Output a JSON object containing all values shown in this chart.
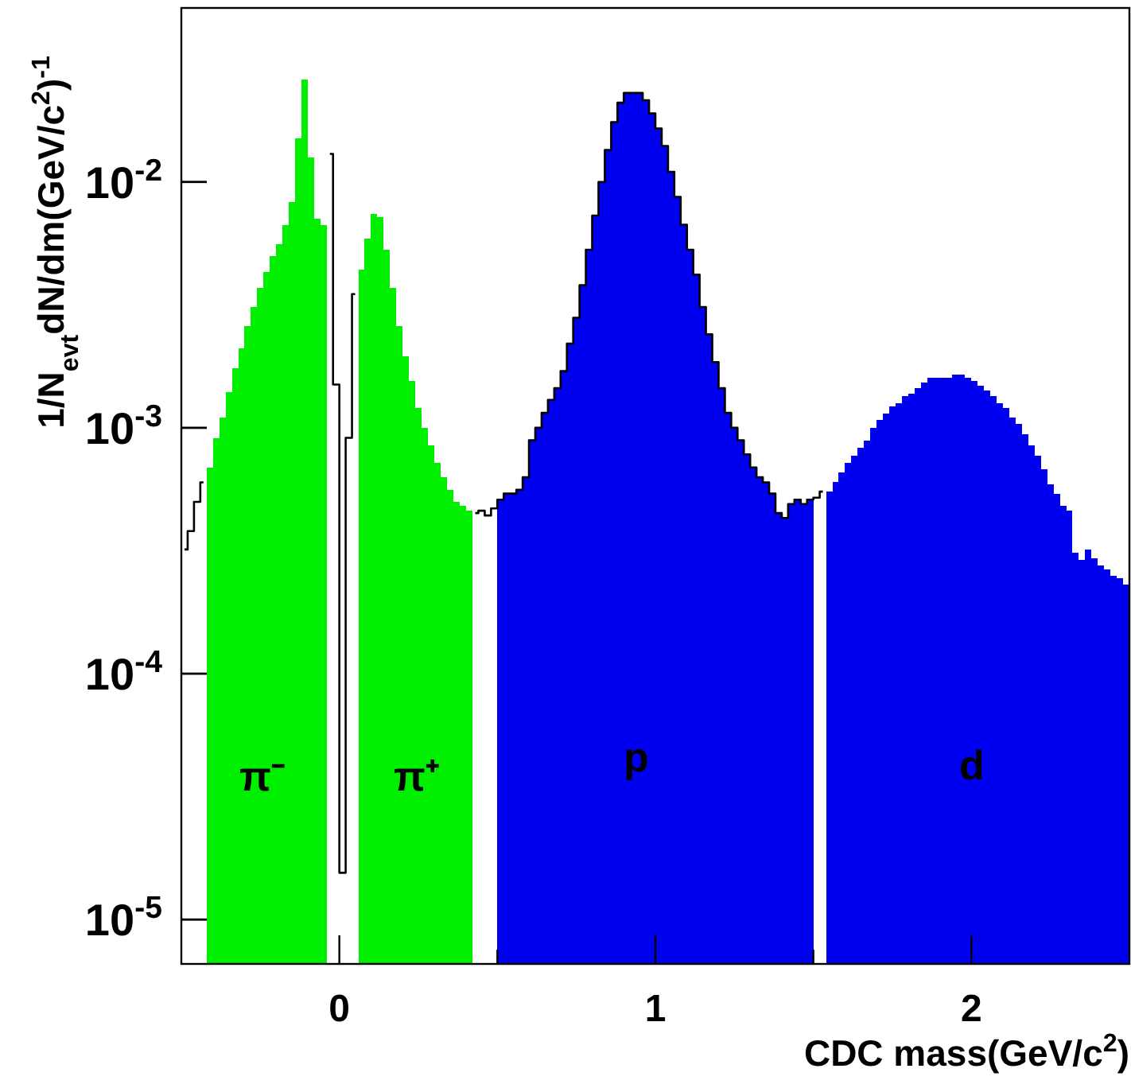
{
  "chart_data": {
    "type": "histogram",
    "xlabel": "CDC mass(GeV/c$^{2}$)",
    "ylabel": "1/N$_{evt}$dN/dm(GeV/c$^{2}$)$^{-1}$",
    "log": "y",
    "xlim": [
      -0.5,
      2.5
    ],
    "xticks": [
      0,
      {
        "value": 0.5,
        "label": null
      },
      1,
      {
        "value": 1.5,
        "label": null
      },
      2
    ],
    "ylim": [
      6.6e-06,
      0.051
    ],
    "yticks": [
      {
        "value": 1e-05,
        "label": "10$^{-5}$"
      },
      {
        "value": 0.0001,
        "label": "10$^{-4}$"
      },
      {
        "value": 0.001,
        "label": "10$^{-3}$"
      },
      {
        "value": 0.01,
        "label": "10$^{-2}$"
      }
    ],
    "bins": [
      -0.5,
      -0.48,
      -0.46,
      -0.44,
      -0.42,
      -0.4,
      -0.38,
      -0.36,
      -0.34,
      -0.32,
      -0.3,
      -0.28,
      -0.26,
      -0.24,
      -0.22,
      -0.2,
      -0.18,
      -0.16,
      -0.14,
      -0.12,
      -0.1,
      -0.08,
      -0.06,
      -0.04,
      -0.02,
      0,
      0.02,
      0.04,
      0.06,
      0.08,
      0.1,
      0.12,
      0.14,
      0.16,
      0.18,
      0.2,
      0.22,
      0.24,
      0.26,
      0.28,
      0.3,
      0.32,
      0.34,
      0.36,
      0.38,
      0.4,
      0.42,
      0.44,
      0.46,
      0.48,
      0.5,
      0.52,
      0.54,
      0.56,
      0.58,
      0.6,
      0.62,
      0.64,
      0.66,
      0.68,
      0.7,
      0.72,
      0.74,
      0.76,
      0.78,
      0.8,
      0.82,
      0.84,
      0.86,
      0.88,
      0.9,
      0.92,
      0.94,
      0.96,
      0.98,
      1,
      1.02,
      1.04,
      1.06,
      1.08,
      1.1,
      1.12,
      1.14,
      1.16,
      1.18,
      1.2,
      1.22,
      1.24,
      1.26,
      1.28,
      1.3,
      1.32,
      1.34,
      1.36,
      1.38,
      1.4,
      1.42,
      1.44,
      1.46,
      1.48,
      1.5,
      1.52,
      1.54,
      1.56,
      1.58,
      1.6,
      1.62,
      1.64,
      1.66,
      1.68,
      1.7,
      1.72,
      1.74,
      1.76,
      1.78,
      1.8,
      1.82,
      1.84,
      1.86,
      1.88,
      1.9,
      1.92,
      1.94,
      1.96,
      1.98,
      2,
      2.02,
      2.04,
      2.06,
      2.08,
      2.1,
      2.12,
      2.14,
      2.16,
      2.18,
      2.2,
      2.22,
      2.24,
      2.26,
      2.28,
      2.3,
      2.32,
      2.34,
      2.36,
      2.38,
      2.4,
      2.42,
      2.44,
      2.46,
      2.48,
      2.5
    ],
    "series": [
      {
        "color": "#00ee00",
        "values": [
          null,
          null,
          null,
          null,
          0.00069,
          0.00091,
          0.0011,
          0.0014,
          0.00175,
          0.0021,
          0.0026,
          0.0031,
          0.0037,
          0.0043,
          0.005,
          0.0056,
          0.0067,
          0.0083,
          0.015,
          0.026,
          0.0126,
          0.0071,
          0.0067,
          null,
          null,
          null,
          null,
          null,
          0.0044,
          0.0059,
          0.0074,
          0.0072,
          0.0053,
          0.0037,
          0.0026,
          0.00195,
          0.00155,
          0.0012,
          0.001,
          0.00085,
          0.00072,
          0.00063,
          0.00056,
          0.0005,
          0.00048,
          0.00046,
          null,
          null,
          null,
          null,
          null,
          null,
          null,
          null,
          null,
          null,
          null,
          null,
          null,
          null,
          null,
          null,
          null,
          null,
          null,
          null,
          null,
          null,
          null,
          null,
          null,
          null,
          null,
          null,
          null,
          null,
          null,
          null,
          null,
          null,
          null,
          null,
          null,
          null,
          null,
          null,
          null,
          null,
          null,
          null,
          null,
          null,
          null,
          null,
          null,
          null,
          null,
          null,
          null,
          null,
          null,
          null,
          null,
          null,
          null,
          null,
          null,
          null,
          null,
          null,
          null,
          null,
          null,
          null,
          null,
          null,
          null,
          null,
          null,
          null,
          null,
          null,
          null,
          null,
          null,
          null,
          null,
          null,
          null,
          null,
          null,
          null,
          null,
          null,
          null,
          null,
          null,
          null,
          null,
          null,
          null,
          null,
          null,
          null,
          null,
          null,
          null,
          null,
          null,
          null
        ]
      },
      {
        "color": "#0000f0",
        "values": [
          null,
          null,
          null,
          null,
          null,
          null,
          null,
          null,
          null,
          null,
          null,
          null,
          null,
          null,
          null,
          null,
          null,
          null,
          null,
          null,
          null,
          null,
          null,
          null,
          null,
          null,
          null,
          null,
          null,
          null,
          null,
          null,
          null,
          null,
          null,
          null,
          null,
          null,
          null,
          null,
          null,
          null,
          null,
          null,
          null,
          null,
          null,
          null,
          null,
          null,
          0.00051,
          0.00054,
          0.00054,
          0.00056,
          0.00063,
          0.00089,
          0.001,
          0.00115,
          0.0013,
          0.00145,
          0.0017,
          0.0022,
          0.0028,
          0.0038,
          0.0053,
          0.0073,
          0.01,
          0.0135,
          0.0175,
          0.021,
          0.023,
          0.023,
          0.023,
          0.0215,
          0.019,
          0.0165,
          0.014,
          0.011,
          0.0087,
          0.0067,
          0.0053,
          0.0042,
          0.0031,
          0.0024,
          0.00185,
          0.00145,
          0.00115,
          0.001,
          0.00089,
          0.00078,
          0.00069,
          0.00063,
          0.0006,
          0.00054,
          0.00045,
          0.00043,
          0.00049,
          0.00051,
          0.00049,
          0.00051,
          null,
          null,
          0.00055,
          0.0006,
          0.00066,
          0.00072,
          0.00077,
          0.00083,
          0.00089,
          0.001,
          0.00108,
          0.00114,
          0.00122,
          0.00126,
          0.00135,
          0.00138,
          0.00145,
          0.00153,
          0.0016,
          0.0016,
          0.0016,
          0.0016,
          0.00165,
          0.00165,
          0.0016,
          0.00155,
          0.00148,
          0.00142,
          0.00135,
          0.00126,
          0.0012,
          0.0011,
          0.00104,
          0.00094,
          0.00085,
          0.00077,
          0.00068,
          0.00059,
          0.00054,
          0.00048,
          0.00046,
          0.00031,
          0.00029,
          0.00032,
          0.000295,
          0.000275,
          0.000265,
          0.00025,
          0.000245,
          0.00023
        ]
      },
      {
        "type": "step",
        "color": "#000000",
        "x": [
          -0.49,
          -0.47,
          -0.45,
          -0.43,
          -0.41,
          -0.39,
          -0.37,
          -0.35,
          -0.33,
          -0.31,
          -0.29,
          -0.27,
          -0.25,
          -0.23,
          -0.21,
          -0.19,
          -0.17,
          -0.15,
          -0.13,
          -0.11,
          -0.09,
          -0.07,
          -0.05,
          -0.03,
          -0.01,
          0.01,
          0.03,
          0.05,
          0.07,
          0.09,
          0.11,
          0.13,
          0.15,
          0.17,
          0.19,
          0.21,
          0.23,
          0.25,
          0.27,
          0.29,
          0.31,
          0.33,
          0.35,
          0.37,
          0.39,
          0.41,
          0.43,
          0.45,
          0.47,
          0.49,
          0.51,
          0.53,
          0.55,
          0.57,
          0.59,
          0.61,
          0.63,
          0.65,
          0.67,
          0.69,
          0.71,
          0.73,
          0.75,
          0.77,
          0.79,
          0.81,
          0.83,
          0.85,
          0.87,
          0.89,
          0.91,
          0.93,
          0.95,
          0.97,
          0.99,
          1.01,
          1.03,
          1.05,
          1.07,
          1.09,
          1.11,
          1.13,
          1.15,
          1.17,
          1.19,
          1.21,
          1.23,
          1.25,
          1.27,
          1.29,
          1.31,
          1.33,
          1.35,
          1.37,
          1.39,
          1.41,
          1.43,
          1.45,
          1.47,
          1.49,
          1.51,
          1.53
        ],
        "values": [
          0.00032,
          0.00038,
          0.0005,
          0.0006,
          null,
          null,
          null,
          null,
          null,
          null,
          null,
          null,
          null,
          null,
          null,
          null,
          null,
          null,
          null,
          null,
          null,
          null,
          null,
          0.013,
          0.0015,
          1.55e-05,
          0.00091,
          0.0035,
          null,
          null,
          null,
          null,
          null,
          null,
          null,
          null,
          null,
          null,
          null,
          null,
          null,
          null,
          null,
          null,
          null,
          null,
          0.00045,
          0.00046,
          0.00044,
          0.00047,
          0.00051,
          0.00054,
          0.00054,
          0.00056,
          0.00063,
          0.00089,
          0.001,
          0.00115,
          0.0013,
          0.00145,
          0.0017,
          0.0022,
          0.0028,
          0.0038,
          0.0053,
          0.0073,
          0.01,
          0.0135,
          0.0175,
          0.021,
          0.023,
          0.023,
          0.023,
          0.0215,
          0.019,
          0.0165,
          0.014,
          0.011,
          0.0087,
          0.0067,
          0.0053,
          0.0042,
          0.0031,
          0.0024,
          0.00185,
          0.00145,
          0.00115,
          0.001,
          0.00089,
          0.00078,
          0.00069,
          0.00063,
          0.0006,
          0.00054,
          0.00045,
          0.00043,
          0.00049,
          0.00051,
          0.00049,
          0.00051,
          0.00052,
          0.00055
        ]
      }
    ],
    "annotations": [
      "π⁻",
      "π⁺",
      "p",
      "d"
    ]
  }
}
